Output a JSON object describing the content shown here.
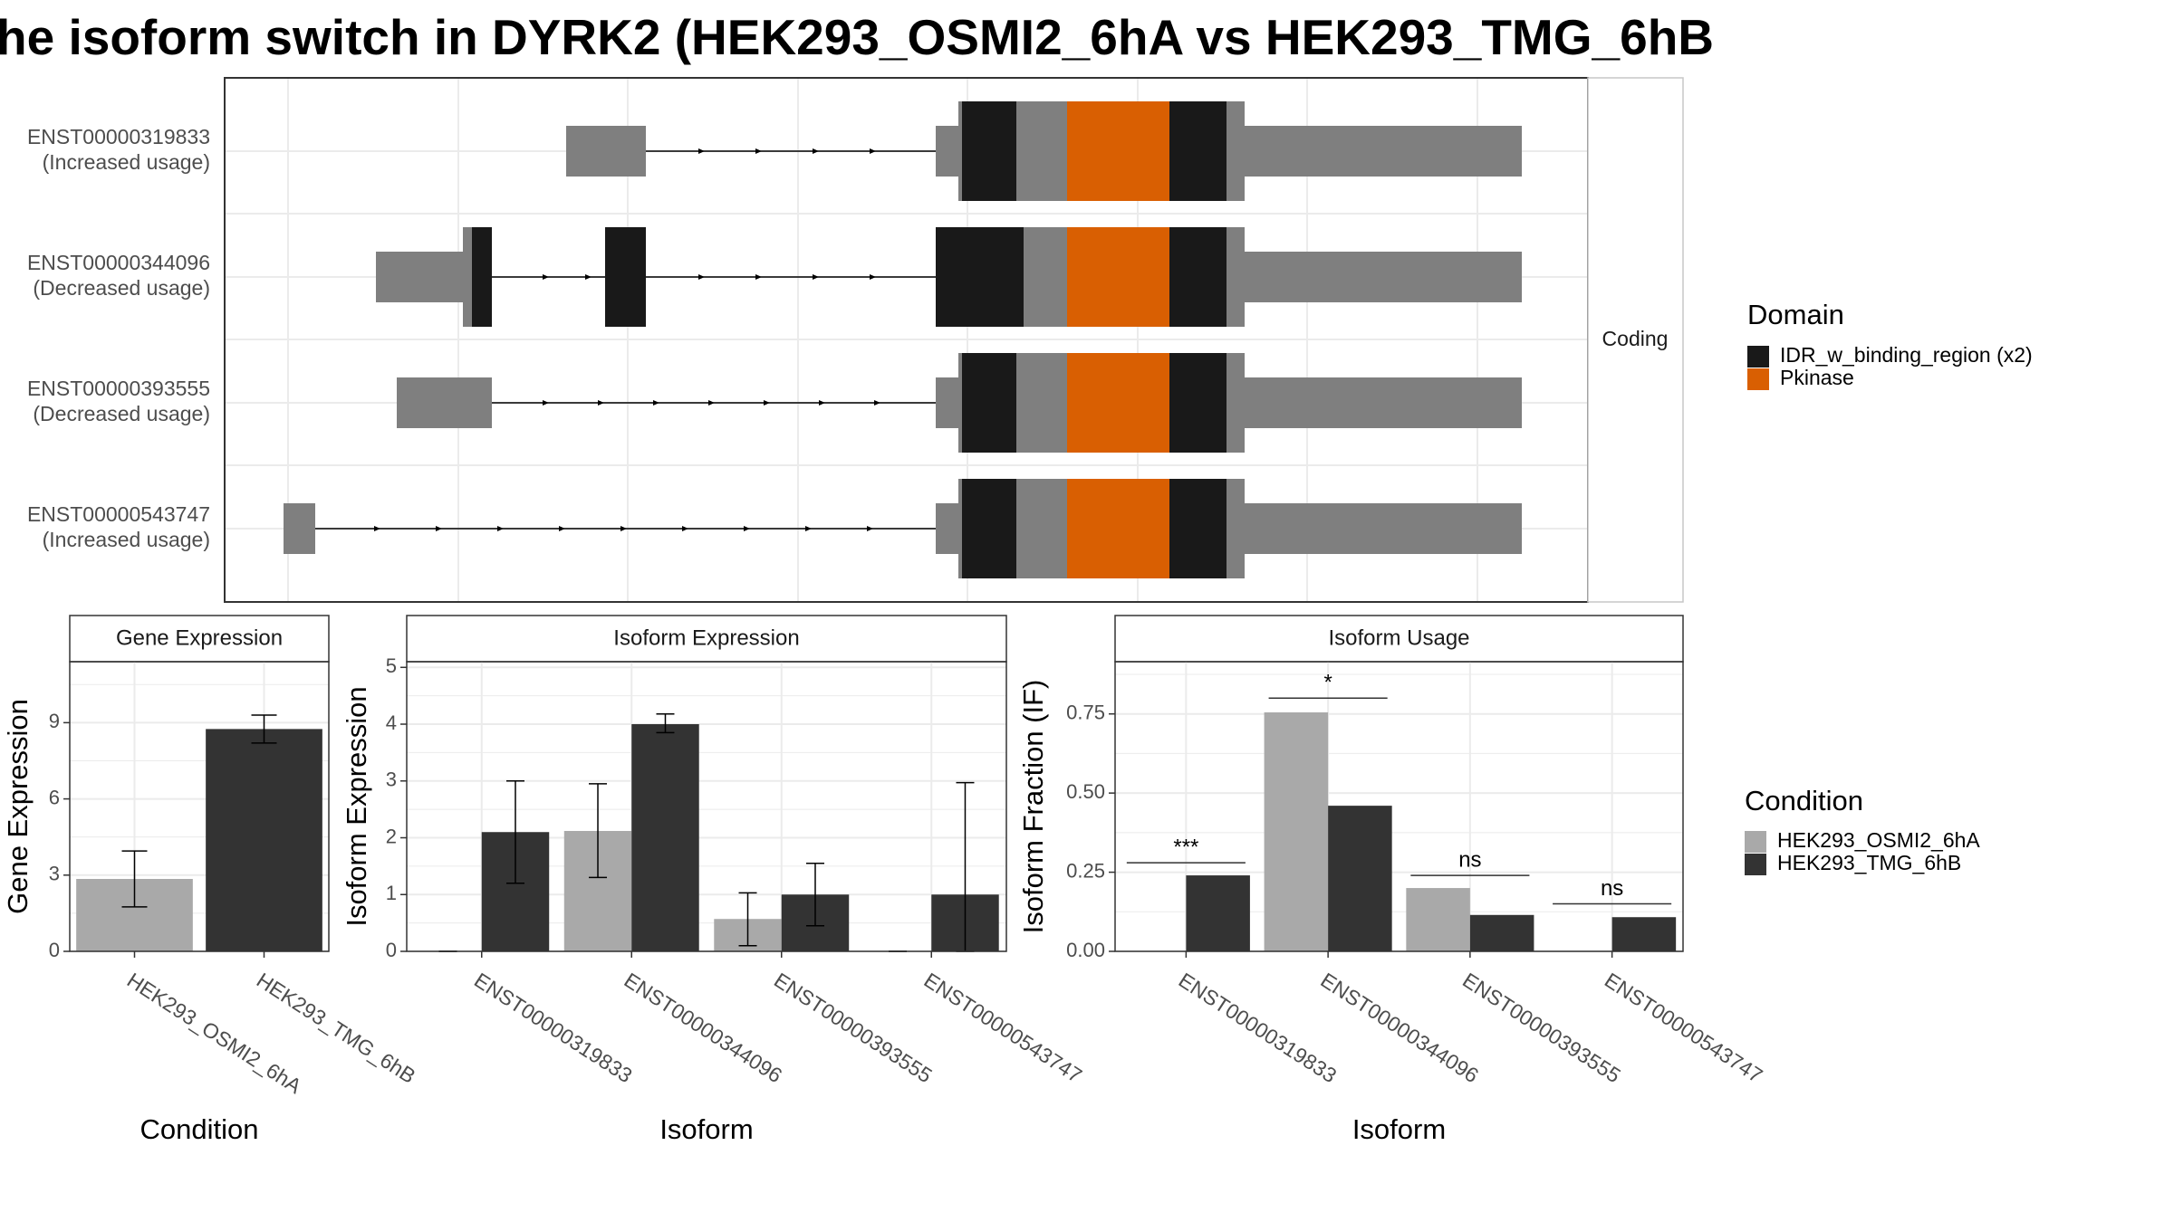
{
  "title": "he isoform switch in DYRK2 (HEK293_OSMI2_6hA vs HEK293_TMG_6hB",
  "colors": {
    "idr": "#191919",
    "pkinase": "#d95f02",
    "exon": "#7f7f7f",
    "cond_a": "#a9a9a9",
    "cond_b": "#333333",
    "grid": "#ebebeb",
    "panel_border": "#333333",
    "strip_border": "#c7c7c7"
  },
  "chart_data": [
    {
      "type": "gene-structure",
      "facet_label": "Coding",
      "isoforms": [
        {
          "id": "ENST00000319833",
          "label_line1": "ENST00000319833",
          "label_line2": "(Increased usage)"
        },
        {
          "id": "ENST00000344096",
          "label_line1": "ENST00000344096",
          "label_line2": "(Decreased usage)"
        },
        {
          "id": "ENST00000393555",
          "label_line1": "ENST00000393555",
          "label_line2": "(Decreased usage)"
        },
        {
          "id": "ENST00000543747",
          "label_line1": "ENST00000543747",
          "label_line2": "(Increased usage)"
        }
      ],
      "legend": {
        "title": "Domain",
        "items": [
          {
            "label": "IDR_w_binding_region (x2)",
            "color_key": "idr"
          },
          {
            "label": "Pkinase",
            "color_key": "pkinase"
          }
        ]
      }
    },
    {
      "type": "bar",
      "title": "Gene Expression",
      "xlabel": "Condition",
      "ylabel": "Gene Expression",
      "ylim": [
        0,
        11.4
      ],
      "yticks": [
        0,
        3,
        6,
        9
      ],
      "categories": [
        "HEK293_OSMI2_6hA",
        "HEK293_TMG_6hB"
      ],
      "values": [
        2.85,
        8.75
      ],
      "error_low": [
        1.75,
        8.2
      ],
      "error_high": [
        3.95,
        9.3
      ]
    },
    {
      "type": "bar",
      "title": "Isoform Expression",
      "xlabel": "Isoform",
      "ylabel": "Isoform Expression",
      "ylim": [
        0,
        5.1
      ],
      "yticks": [
        0,
        1,
        2,
        3,
        4,
        5
      ],
      "categories": [
        "ENST00000319833",
        "ENST00000344096",
        "ENST00000393555",
        "ENST00000543747"
      ],
      "series": [
        {
          "name": "HEK293_OSMI2_6hA",
          "color_key": "cond_a",
          "values": [
            0,
            2.12,
            0.57,
            0
          ],
          "error_low": [
            0,
            1.3,
            0.1,
            0
          ],
          "error_high": [
            0,
            2.95,
            1.03,
            0
          ]
        },
        {
          "name": "HEK293_TMG_6hB",
          "color_key": "cond_b",
          "values": [
            2.1,
            4.0,
            1.0,
            1.0
          ],
          "error_low": [
            1.2,
            3.85,
            0.45,
            0.0
          ],
          "error_high": [
            3.0,
            4.18,
            1.55,
            2.97
          ]
        }
      ]
    },
    {
      "type": "bar",
      "title": "Isoform Usage",
      "xlabel": "Isoform",
      "ylabel": "Isoform Fraction (IF)",
      "ylim": [
        0,
        0.915
      ],
      "yticks": [
        0,
        0.25,
        0.5,
        0.75
      ],
      "ytick_labels": [
        "0.00",
        "0.25",
        "0.50",
        "0.75"
      ],
      "categories": [
        "ENST00000319833",
        "ENST00000344096",
        "ENST00000393555",
        "ENST00000543747"
      ],
      "series": [
        {
          "name": "HEK293_OSMI2_6hA",
          "color_key": "cond_a",
          "values": [
            0,
            0.755,
            0.2,
            0
          ]
        },
        {
          "name": "HEK293_TMG_6hB",
          "color_key": "cond_b",
          "values": [
            0.24,
            0.46,
            0.115,
            0.108
          ]
        }
      ],
      "significance": [
        "***",
        "*",
        "ns",
        "ns"
      ],
      "significance_level": [
        0.28,
        0.8,
        0.24,
        0.15
      ],
      "legend": {
        "title": "Condition"
      }
    }
  ]
}
